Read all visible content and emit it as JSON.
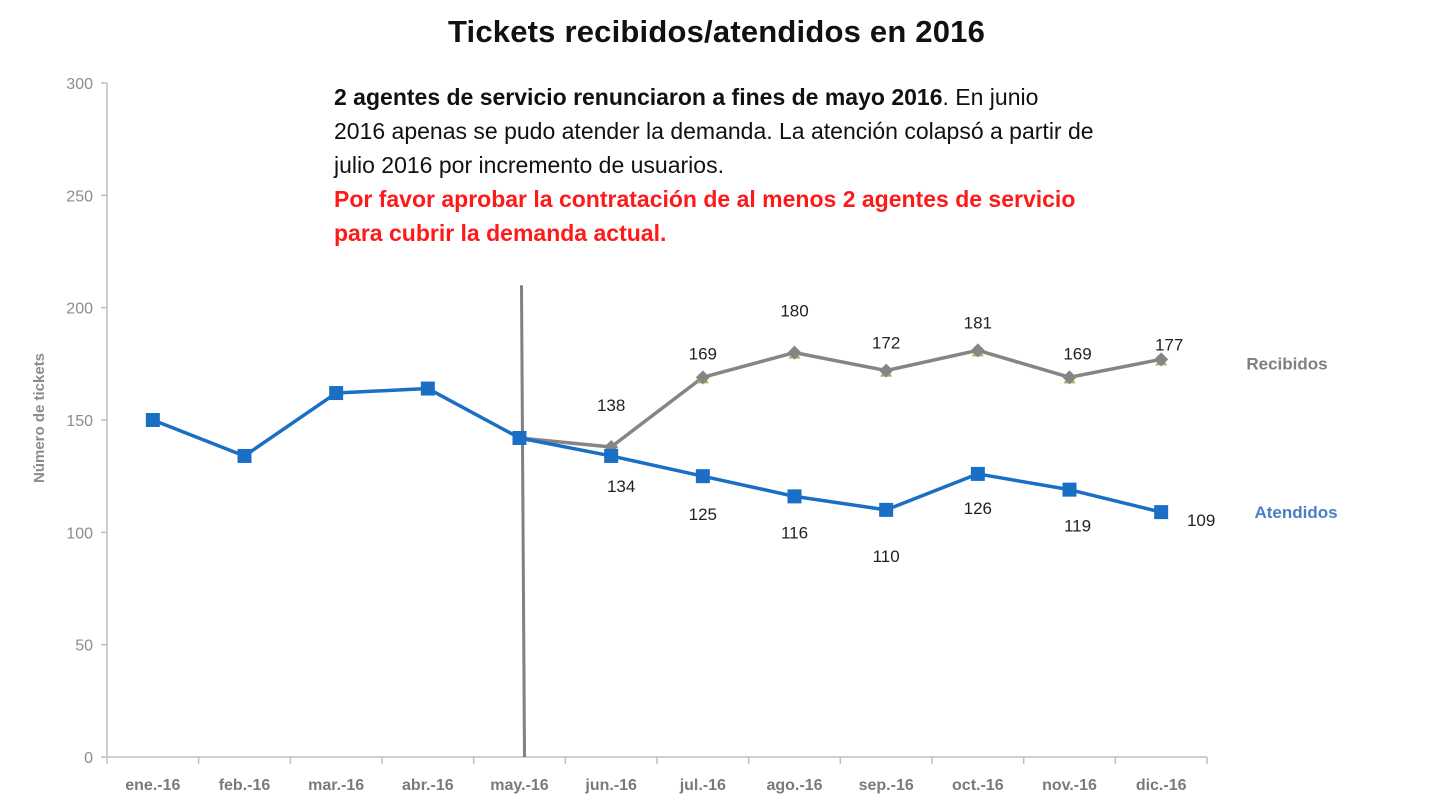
{
  "chart_data": {
    "type": "line",
    "title": "Tickets recibidos/atendidos en 2016",
    "xlabel": "",
    "ylabel": "Número de tickets",
    "ylim": [
      0,
      300
    ],
    "yticks": [
      0,
      50,
      100,
      150,
      200,
      250,
      300
    ],
    "categories": [
      "ene.-16",
      "feb.-16",
      "mar.-16",
      "abr.-16",
      "may.-16",
      "jun.-16",
      "jul.-16",
      "ago.-16",
      "sep.-16",
      "oct.-16",
      "nov.-16",
      "dic.-16"
    ],
    "series": [
      {
        "name": "Atendidos",
        "color": "#1a6fc4",
        "marker": "square",
        "values": [
          150,
          134,
          162,
          164,
          142,
          134,
          125,
          116,
          110,
          126,
          119,
          109
        ],
        "labels": [
          null,
          null,
          null,
          null,
          null,
          "134",
          "125",
          "116",
          "110",
          "126",
          "119",
          "109"
        ]
      },
      {
        "name": "Recibidos",
        "color": "#858585",
        "marker": "diamond",
        "values": [
          null,
          null,
          null,
          null,
          142,
          138,
          169,
          180,
          172,
          181,
          169,
          177
        ],
        "labels": [
          null,
          null,
          null,
          null,
          null,
          "138",
          "169",
          "180",
          "172",
          "181",
          "169",
          "177"
        ]
      }
    ],
    "vertical_marker_after": "may.-16",
    "annotation": {
      "bold": "2 agentes de servicio renunciaron a fines de mayo 2016",
      "normal": ". En junio 2016 apenas se pudo atender la demanda.  La atención colapsó a partir de julio 2016 por incremento  de usuarios.",
      "red": "Por favor aprobar  la contratación de al menos 2 agentes de servicio para cubrir la demanda actual."
    }
  },
  "colors": {
    "axis": "#bfbfbf",
    "divider": "#808080",
    "recibidos_marker_accent": "#9bbb59"
  }
}
